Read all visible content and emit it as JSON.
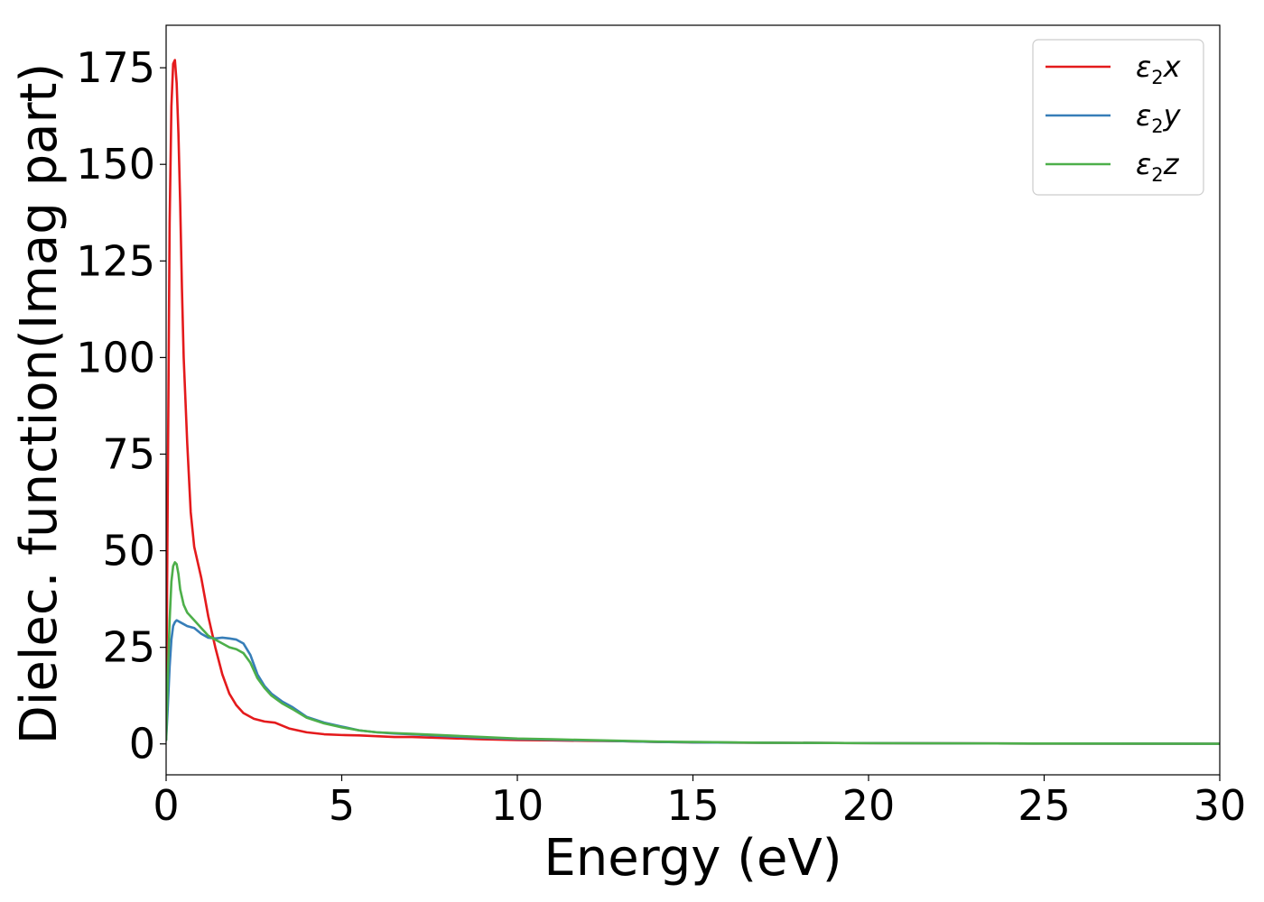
{
  "chart_data": {
    "type": "line",
    "xlabel": "Energy (eV)",
    "ylabel": "Dielec. function(Imag part)",
    "xlim": [
      0,
      30
    ],
    "ylim": [
      -8,
      186
    ],
    "xticks": [
      0,
      5,
      10,
      15,
      20,
      25,
      30
    ],
    "yticks": [
      0,
      25,
      50,
      75,
      100,
      125,
      150,
      175
    ],
    "grid": false,
    "legend_position": "top-right",
    "series": [
      {
        "name": "ε₂x",
        "legend_base": "ε",
        "legend_sub": "2",
        "legend_suffix": "x",
        "color": "#e41a1c",
        "x": [
          0,
          0.05,
          0.1,
          0.15,
          0.2,
          0.25,
          0.3,
          0.35,
          0.4,
          0.45,
          0.5,
          0.6,
          0.7,
          0.8,
          1.0,
          1.2,
          1.4,
          1.6,
          1.8,
          2.0,
          2.2,
          2.5,
          2.8,
          3.1,
          3.5,
          4.0,
          4.5,
          5.0,
          5.5,
          6.0,
          6.5,
          7.0,
          8.0,
          9.0,
          10.0,
          11.0,
          12.0,
          13.0,
          14.0,
          15.0,
          17.0,
          20.0,
          25.0,
          30.0
        ],
        "y": [
          5,
          70,
          135,
          165,
          176,
          177,
          171,
          158,
          140,
          118,
          100,
          78,
          60,
          51,
          43,
          33,
          25,
          18,
          13,
          10,
          8,
          6.5,
          5.8,
          5.5,
          4,
          3,
          2.5,
          2.3,
          2.2,
          2.0,
          1.8,
          1.8,
          1.5,
          1.2,
          1.0,
          0.9,
          0.8,
          0.7,
          0.5,
          0.4,
          0.3,
          0.2,
          0.1,
          0.05
        ]
      },
      {
        "name": "ε₂y",
        "legend_base": "ε",
        "legend_sub": "2",
        "legend_suffix": "y",
        "color": "#377eb8",
        "x": [
          0,
          0.05,
          0.1,
          0.15,
          0.2,
          0.25,
          0.3,
          0.4,
          0.5,
          0.6,
          0.8,
          1.0,
          1.2,
          1.4,
          1.6,
          1.8,
          2.0,
          2.2,
          2.4,
          2.6,
          2.8,
          3.0,
          3.3,
          3.6,
          4.0,
          4.5,
          5.0,
          5.5,
          6.0,
          6.5,
          7.0,
          8.0,
          9.0,
          10.0,
          11.0,
          12.0,
          13.0,
          14.0,
          15.0,
          17.0,
          20.0,
          25.0,
          30.0
        ],
        "y": [
          1,
          10,
          20,
          27,
          30.5,
          31.5,
          32,
          31.5,
          31,
          30.5,
          30,
          28.5,
          27.5,
          27.3,
          27.5,
          27.3,
          27,
          26,
          23,
          18,
          15,
          13,
          11,
          9.5,
          7,
          5.5,
          4.5,
          3.5,
          3,
          2.7,
          2.5,
          2.0,
          1.6,
          1.3,
          1.1,
          0.9,
          0.7,
          0.5,
          0.4,
          0.3,
          0.2,
          0.1,
          0.05
        ]
      },
      {
        "name": "ε₂z",
        "legend_base": "ε",
        "legend_sub": "2",
        "legend_suffix": "z",
        "color": "#4daf4a",
        "x": [
          0,
          0.05,
          0.1,
          0.15,
          0.2,
          0.25,
          0.3,
          0.35,
          0.4,
          0.5,
          0.6,
          0.8,
          1.0,
          1.2,
          1.4,
          1.6,
          1.8,
          2.0,
          2.2,
          2.4,
          2.6,
          2.8,
          3.0,
          3.3,
          3.6,
          4.0,
          4.5,
          5.0,
          5.5,
          6.0,
          6.5,
          7.0,
          8.0,
          9.0,
          10.0,
          11.0,
          12.0,
          13.0,
          14.0,
          15.0,
          17.0,
          20.0,
          25.0,
          30.0
        ],
        "y": [
          1,
          18,
          32,
          42,
          46,
          47,
          46.5,
          44,
          40,
          36,
          34,
          32,
          30,
          28,
          27,
          26,
          25,
          24.5,
          23.5,
          21,
          17,
          14.5,
          12.5,
          10.5,
          9,
          6.8,
          5.3,
          4.3,
          3.5,
          3,
          2.8,
          2.6,
          2.2,
          1.8,
          1.4,
          1.2,
          1.0,
          0.8,
          0.6,
          0.5,
          0.3,
          0.2,
          0.1,
          0.05
        ]
      }
    ]
  }
}
